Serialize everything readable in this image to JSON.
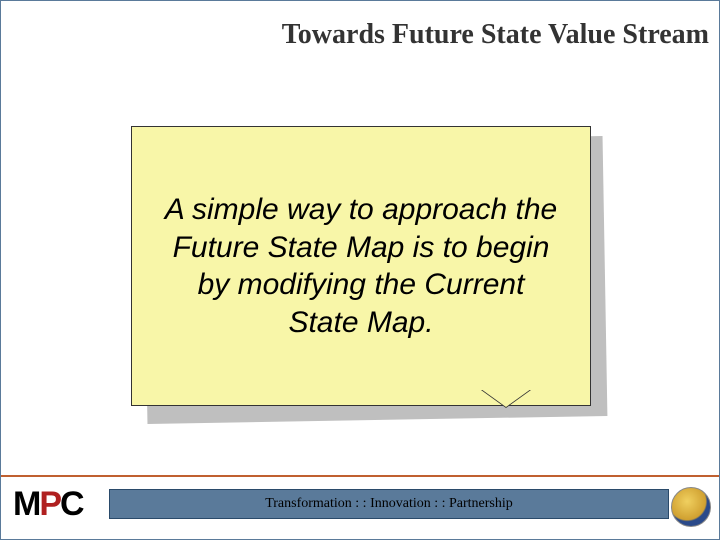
{
  "title": "Towards Future State Value Stream",
  "note": {
    "text": "A simple way to approach the Future State Map is to begin by modifying the Current State Map.",
    "background_color": "#f8f6a8",
    "shadow_color": "#bfbfbf",
    "border_color": "#333333",
    "font_size": 30,
    "font_style": "italic",
    "text_color": "#000000"
  },
  "footer": {
    "tagline": "Transformation : : Innovation : : Partnership",
    "bar_color": "#5a7a9a",
    "line_color": "#c06030",
    "text_color": "#000000",
    "font_size": 14
  },
  "logo": {
    "letters": {
      "m": "M",
      "p": "P",
      "c": "C"
    },
    "m_color": "#000000",
    "p_color": "#b02020",
    "c_color": "#000000"
  },
  "colors": {
    "slide_border": "#5a7a9a",
    "background": "#ffffff",
    "title_color": "#333333"
  },
  "title_fontsize": 28
}
